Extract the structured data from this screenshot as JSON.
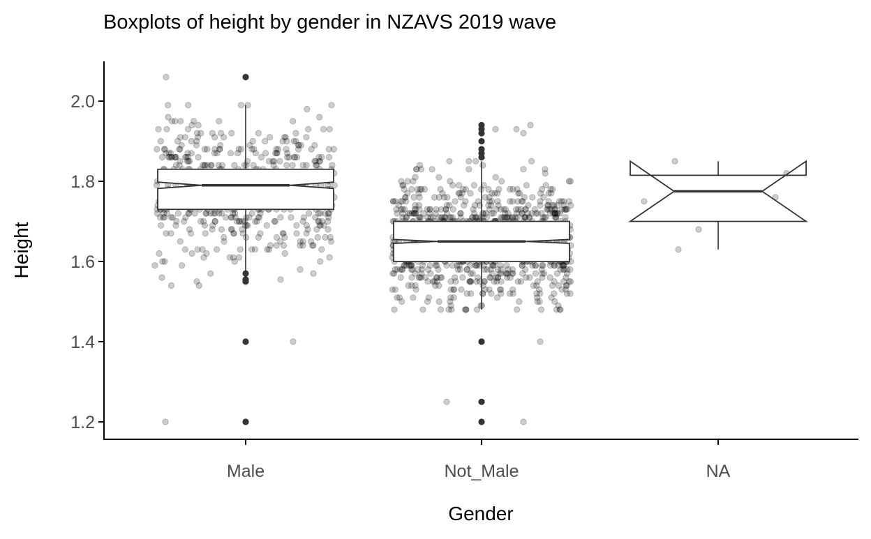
{
  "chart_data": {
    "type": "boxplot",
    "title": "Boxplots of height by gender in NZAVS 2019 wave",
    "xlabel": "Gender",
    "ylabel": "Height",
    "ylim": [
      1.16,
      2.1
    ],
    "y_ticks": [
      "1.2",
      "1.4",
      "1.6",
      "1.8",
      "2.0"
    ],
    "categories": [
      "Male",
      "Not_Male",
      "NA"
    ],
    "grid": false,
    "legend": "none",
    "notched": true,
    "jitter_points_shown": true,
    "colors": {
      "box_fill": "#ffffff",
      "box_stroke": "#333333",
      "point": "#000000",
      "outlier": "#333333",
      "axis": "#000000"
    },
    "boxes": [
      {
        "category": "Male",
        "min": 1.56,
        "q1": 1.73,
        "median": 1.79,
        "q3": 1.83,
        "max": 1.99,
        "notch_low": 1.782,
        "notch_high": 1.798,
        "outliers": [
          2.06,
          1.57,
          1.555,
          1.55,
          1.4,
          1.2
        ]
      },
      {
        "category": "Not_Male",
        "min": 1.48,
        "q1": 1.6,
        "median": 1.65,
        "q3": 1.7,
        "max": 1.85,
        "notch_low": 1.645,
        "notch_high": 1.655,
        "outliers": [
          1.94,
          1.93,
          1.92,
          1.9,
          1.88,
          1.87,
          1.86,
          1.4,
          1.25,
          1.2
        ]
      },
      {
        "category": "NA",
        "min": 1.63,
        "q1": 1.7,
        "median": 1.775,
        "q3": 1.815,
        "max": 1.85,
        "notch_low": 1.7,
        "notch_high": 1.85,
        "outliers": []
      }
    ]
  }
}
